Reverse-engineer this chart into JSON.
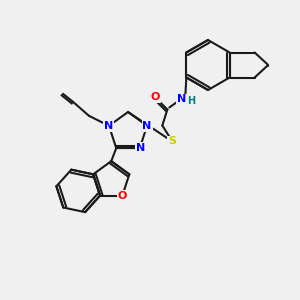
{
  "bg_color": "#f0f0f0",
  "bond_color": "#1a1a1a",
  "atom_colors": {
    "N": "#0000ff",
    "O": "#ff0000",
    "S": "#cccc00",
    "H": "#008080",
    "C": "#1a1a1a"
  },
  "figsize": [
    3.0,
    3.0
  ],
  "dpi": 100,
  "lw": 1.5,
  "fs": 8.0
}
